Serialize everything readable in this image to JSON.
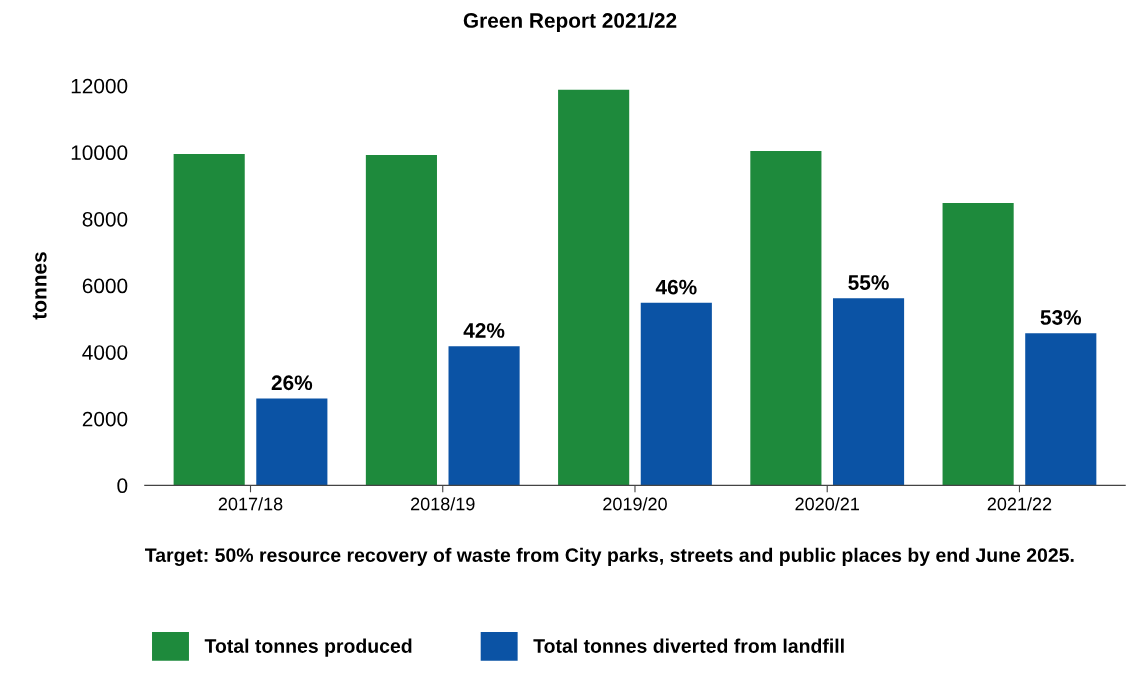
{
  "chart_data": {
    "type": "bar",
    "title": "Green Report 2021/22",
    "ylabel": "tonnes",
    "categories": [
      "2017/18",
      "2018/19",
      "2019/20",
      "2020/21",
      "2021/22"
    ],
    "series": [
      {
        "name": "Total tonnes produced",
        "color": "#1e8a3c",
        "values": [
          9950,
          9920,
          11880,
          10040,
          8480
        ]
      },
      {
        "name": "Total tonnes diverted from landfill",
        "color": "#0b53a5",
        "values": [
          2610,
          4180,
          5480,
          5620,
          4570
        ]
      }
    ],
    "ylim": [
      0,
      12000
    ],
    "yticks": [
      0,
      2000,
      4000,
      6000,
      8000,
      10000,
      12000
    ],
    "grid": false,
    "legend": "bottom",
    "annotations": [
      "26%",
      "42%",
      "46%",
      "55%",
      "53%",
      "Target: 50% resource recovery of waste from City parks, streets and public places by end June 2025."
    ]
  }
}
